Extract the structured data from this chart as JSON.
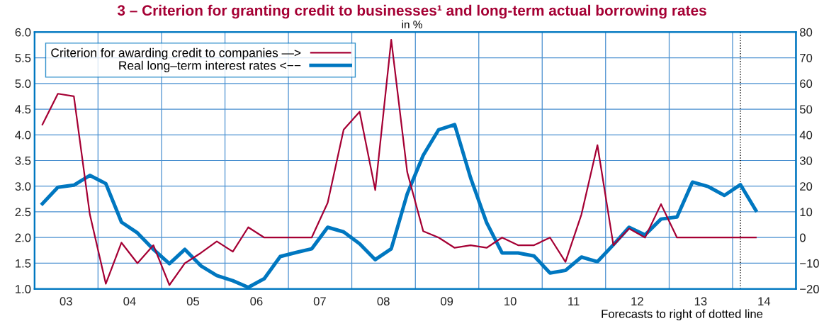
{
  "chart_data": {
    "type": "line",
    "title": "3 – Criterion for granting credit to businesses¹ and long-term actual borrowing rates",
    "subtitle": "in %",
    "x": [
      "2003-02-15",
      "2003-05-15",
      "2003-08-15",
      "2003-11-15",
      "2004-02-15",
      "2004-05-15",
      "2004-08-15",
      "2004-11-15",
      "2005-02-15",
      "2005-05-15",
      "2005-08-15",
      "2005-11-15",
      "2006-02-15",
      "2006-05-15",
      "2006-08-15",
      "2006-11-15",
      "2007-02-15",
      "2007-05-15",
      "2007-08-15",
      "2007-11-15",
      "2008-02-15",
      "2008-05-15",
      "2008-08-15",
      "2008-11-15",
      "2009-02-15",
      "2009-05-15",
      "2009-08-15",
      "2009-11-15",
      "2010-02-15",
      "2010-05-15",
      "2010-08-15",
      "2010-11-15",
      "2011-02-15",
      "2011-05-15",
      "2011-08-15",
      "2011-11-15",
      "2012-02-15",
      "2012-05-15",
      "2012-08-15",
      "2012-11-15",
      "2013-02-15",
      "2013-05-15",
      "2013-08-15",
      "2013-11-15",
      "2014-02-15",
      "2014-05-15"
    ],
    "series": [
      {
        "name": "Criterion for awarding credit to companies —>",
        "color": "#a50034",
        "axis": "y2",
        "values": [
          44,
          56,
          55,
          9,
          -18,
          -2,
          -10,
          -3,
          -18.5,
          -10,
          -6,
          -1.5,
          -5.5,
          4,
          0,
          0,
          0,
          0,
          13.5,
          42,
          49,
          18.5,
          77,
          25.5,
          2.5,
          0,
          -4,
          -3,
          -4,
          0,
          -3,
          -3,
          0,
          -9.5,
          9,
          36,
          -3,
          3.5,
          0,
          13,
          0,
          0,
          0,
          0,
          0,
          0
        ]
      },
      {
        "name": "Real long–term interest rates <−−",
        "color": "#0077c0",
        "axis": "y",
        "values": [
          2.66,
          2.98,
          3.02,
          3.21,
          3.05,
          2.3,
          2.09,
          1.77,
          1.49,
          1.77,
          1.45,
          1.26,
          1.16,
          1.03,
          1.2,
          1.63,
          1.71,
          1.78,
          2.2,
          2.11,
          1.88,
          1.57,
          1.78,
          2.85,
          3.6,
          4.1,
          4.2,
          3.16,
          2.29,
          1.7,
          1.7,
          1.64,
          1.31,
          1.36,
          1.62,
          1.53,
          1.86,
          2.2,
          2.05,
          2.36,
          2.4,
          3.08,
          2.99,
          2.82,
          3.03,
          2.53
        ]
      }
    ],
    "xlim": [
      "2003-01-01",
      "2015-01-01"
    ],
    "xticks": [
      {
        "value": "2003-01-01",
        "label": null
      },
      {
        "value": "2004-01-01",
        "label": null
      },
      {
        "value": "2005-01-01",
        "label": null
      },
      {
        "value": "2006-01-01",
        "label": null
      },
      {
        "value": "2007-01-01",
        "label": null
      },
      {
        "value": "2008-01-01",
        "label": null
      },
      {
        "value": "2009-01-01",
        "label": null
      },
      {
        "value": "2010-01-01",
        "label": null
      },
      {
        "value": "2011-01-01",
        "label": null
      },
      {
        "value": "2012-01-01",
        "label": null
      },
      {
        "value": "2013-01-01",
        "label": null
      },
      {
        "value": "2014-01-01",
        "label": null
      },
      {
        "value": "2015-01-01",
        "label": null
      },
      {
        "value": "2003-07-01",
        "label": "03"
      },
      {
        "value": "2004-07-01",
        "label": "04"
      },
      {
        "value": "2005-07-01",
        "label": "05"
      },
      {
        "value": "2006-07-01",
        "label": "06"
      },
      {
        "value": "2007-07-01",
        "label": "07"
      },
      {
        "value": "2008-07-01",
        "label": "08"
      },
      {
        "value": "2009-07-01",
        "label": "09"
      },
      {
        "value": "2010-07-01",
        "label": "10"
      },
      {
        "value": "2011-07-01",
        "label": "11"
      },
      {
        "value": "2012-07-01",
        "label": "12"
      },
      {
        "value": "2013-07-01",
        "label": "13"
      },
      {
        "value": "2014-07-01",
        "label": "14"
      }
    ],
    "ylim": [
      1,
      6
    ],
    "yticks": [
      {
        "value": 1,
        "label": "1.0"
      },
      {
        "value": 1.5,
        "label": "1.5"
      },
      {
        "value": 2,
        "label": "2.0"
      },
      {
        "value": 2.5,
        "label": "2.5"
      },
      {
        "value": 3,
        "label": "3.0"
      },
      {
        "value": 3.5,
        "label": "3.5"
      },
      {
        "value": 4,
        "label": "4.0"
      },
      {
        "value": 4.5,
        "label": "4.5"
      },
      {
        "value": 5,
        "label": "5.0"
      },
      {
        "value": 5.5,
        "label": "5.5"
      },
      {
        "value": 6,
        "label": "6.0"
      }
    ],
    "y2lim": [
      -20,
      80
    ],
    "y2ticks": [
      {
        "value": -20,
        "label": "−20"
      },
      {
        "value": -10,
        "label": "−10"
      },
      0,
      10,
      20,
      30,
      40,
      50,
      60,
      70,
      80
    ],
    "ref_lines": [
      {
        "axis": "x",
        "value": "2014-02-15",
        "label": null,
        "color": "#000000",
        "line_style": "dotted"
      }
    ],
    "annotations": [
      "Forecasts to right of dotted line"
    ],
    "grid": true,
    "legend": "top left",
    "marker": "none",
    "line_style": "solid"
  }
}
